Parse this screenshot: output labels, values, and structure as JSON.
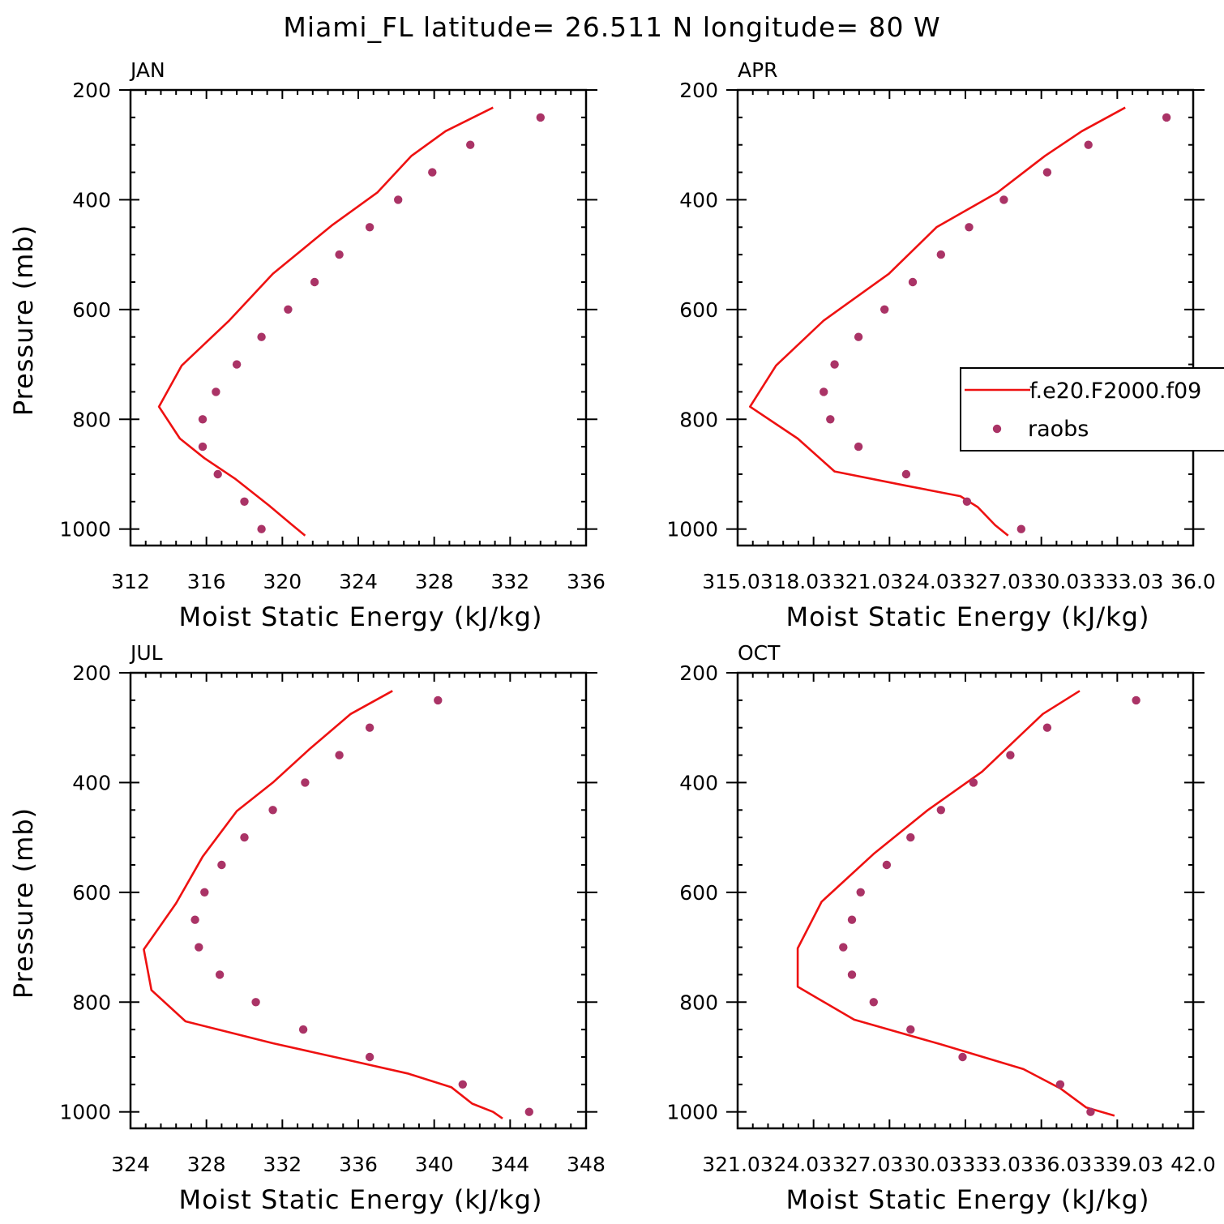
{
  "figure_title": "Miami_FL  latitude= 26.511 N longitude= 80 W",
  "chart_data": [
    {
      "type": "line",
      "title": "JAN",
      "xlabel": "Moist Static Energy (kJ/kg)",
      "ylabel": "Pressure (mb)",
      "xlim": [
        312,
        336
      ],
      "ylim": [
        1000,
        200
      ],
      "xtick_labels": [
        "312",
        "316",
        "320",
        "324",
        "328",
        "332",
        "336"
      ],
      "ytick_labels": [
        "200",
        "400",
        "600",
        "800",
        "1000"
      ],
      "series": [
        {
          "name": "f.e20.F2000.f09",
          "kind": "line",
          "color": "#ee1111",
          "x": [
            321.2,
            320.5,
            319.3,
            317.5,
            315.9,
            314.6,
            313.5,
            314.7,
            317.2,
            319.5,
            322.6,
            325.0,
            326.8,
            328.6,
            331.1
          ],
          "y": [
            1012,
            992,
            957,
            908,
            871,
            835,
            777,
            702,
            620,
            535,
            447,
            387,
            320,
            275,
            232
          ]
        },
        {
          "name": "raobs",
          "kind": "scatter",
          "color": "#aa3366",
          "x": [
            318.9,
            318.0,
            316.6,
            315.8,
            315.8,
            316.5,
            317.6,
            318.9,
            320.3,
            321.7,
            323.0,
            324.6,
            326.1,
            327.9,
            329.9,
            333.6
          ],
          "y": [
            1000,
            950,
            900,
            850,
            800,
            750,
            700,
            650,
            600,
            550,
            500,
            450,
            400,
            350,
            300,
            250
          ]
        }
      ]
    },
    {
      "type": "line",
      "title": "APR",
      "xlabel": "Moist Static Energy (kJ/kg)",
      "ylabel": "",
      "xlim": [
        315.03,
        336.03
      ],
      "ylim": [
        1000,
        200
      ],
      "xtick_labels": [
        "315.03",
        "18.03",
        "321.03",
        "24.03",
        "327.03",
        "30.03",
        "333.03",
        "36.0"
      ],
      "ytick_labels": [
        "200",
        "400",
        "600",
        "800",
        "1000"
      ],
      "series": [
        {
          "name": "f.e20.F2000.f09",
          "kind": "line",
          "color": "#ee1111",
          "x": [
            327.5,
            326.9,
            326.1,
            325.3,
            322.8,
            319.5,
            317.8,
            315.6,
            316.8,
            319.0,
            322.0,
            324.2,
            327.0,
            329.2,
            330.9,
            332.9
          ],
          "y": [
            1012,
            993,
            960,
            940,
            921,
            895,
            835,
            777,
            702,
            620,
            535,
            450,
            387,
            320,
            275,
            232
          ]
        },
        {
          "name": "raobs",
          "kind": "scatter",
          "color": "#aa3366",
          "x": [
            328.1,
            325.6,
            322.8,
            320.6,
            319.3,
            319.0,
            319.5,
            320.6,
            321.8,
            323.1,
            324.4,
            325.7,
            327.3,
            329.3,
            331.2,
            334.8
          ],
          "y": [
            1000,
            950,
            900,
            850,
            800,
            750,
            700,
            650,
            600,
            550,
            500,
            450,
            400,
            350,
            300,
            250
          ]
        }
      ]
    },
    {
      "type": "line",
      "title": "JUL",
      "xlabel": "Moist Static Energy (kJ/kg)",
      "ylabel": "Pressure (mb)",
      "xlim": [
        324,
        348
      ],
      "ylim": [
        1000,
        200
      ],
      "xtick_labels": [
        "324",
        "328",
        "332",
        "336",
        "340",
        "344",
        "348"
      ],
      "ytick_labels": [
        "200",
        "400",
        "600",
        "800",
        "1000"
      ],
      "series": [
        {
          "name": "f.e20.F2000.f09",
          "kind": "line",
          "color": "#ee1111",
          "x": [
            343.6,
            343.1,
            342.0,
            340.9,
            338.6,
            335.4,
            331.5,
            326.9,
            325.1,
            324.7,
            326.4,
            327.8,
            329.6,
            331.5,
            333.4,
            335.6,
            337.8
          ],
          "y": [
            1012,
            1000,
            985,
            955,
            930,
            905,
            875,
            835,
            778,
            704,
            620,
            535,
            452,
            400,
            340,
            275,
            233
          ]
        },
        {
          "name": "raobs",
          "kind": "scatter",
          "color": "#aa3366",
          "x": [
            345.0,
            341.5,
            336.6,
            333.1,
            330.6,
            328.7,
            327.6,
            327.4,
            327.9,
            328.8,
            330.0,
            331.5,
            333.2,
            335.0,
            336.6,
            340.2
          ],
          "y": [
            1000,
            950,
            900,
            850,
            800,
            750,
            700,
            650,
            600,
            550,
            500,
            450,
            400,
            350,
            300,
            250
          ]
        }
      ]
    },
    {
      "type": "line",
      "title": "OCT",
      "xlabel": "Moist Static Energy (kJ/kg)",
      "ylabel": "",
      "xlim": [
        321.03,
        342.03
      ],
      "ylim": [
        1000,
        200
      ],
      "xtick_labels": [
        "321.03",
        "24.03",
        "327.03",
        "30.03",
        "333.03",
        "36.03",
        "339.03",
        "42.0"
      ],
      "ytick_labels": [
        "200",
        "400",
        "600",
        "800",
        "1000"
      ],
      "series": [
        {
          "name": "f.e20.F2000.f09",
          "kind": "line",
          "color": "#ee1111",
          "x": [
            338.4,
            337.1,
            335.9,
            334.2,
            330.4,
            326.4,
            323.8,
            323.8,
            324.9,
            327.3,
            329.8,
            332.3,
            335.1,
            336.8
          ],
          "y": [
            1007,
            992,
            957,
            922,
            877,
            832,
            772,
            702,
            617,
            530,
            450,
            380,
            275,
            233
          ]
        },
        {
          "name": "raobs",
          "kind": "scatter",
          "color": "#aa3366",
          "x": [
            337.3,
            335.9,
            331.4,
            329.0,
            327.3,
            326.3,
            325.9,
            326.3,
            326.7,
            327.9,
            329.0,
            330.4,
            331.9,
            333.6,
            335.3,
            339.4
          ],
          "y": [
            1000,
            950,
            900,
            850,
            800,
            750,
            700,
            650,
            600,
            550,
            500,
            450,
            400,
            350,
            300,
            250
          ]
        }
      ]
    }
  ],
  "legend": {
    "items": [
      {
        "label": "f.e20.F2000.f09",
        "kind": "line",
        "color": "#ee1111"
      },
      {
        "label": "raobs",
        "kind": "marker",
        "color": "#aa3366"
      }
    ]
  }
}
